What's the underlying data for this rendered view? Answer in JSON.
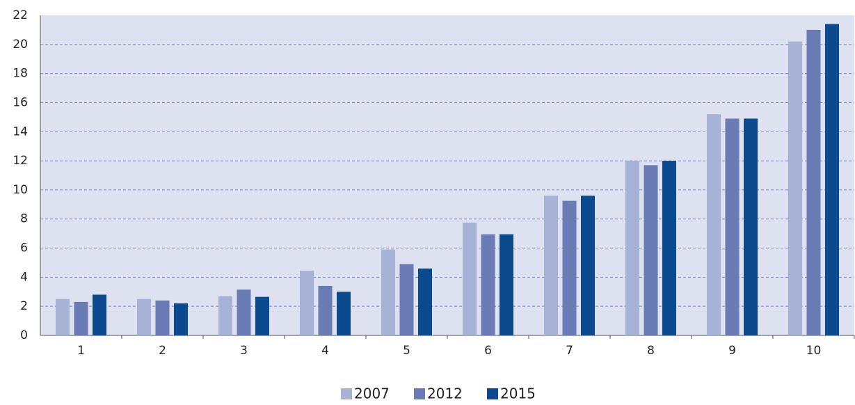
{
  "chart_data": {
    "type": "bar",
    "categories": [
      "1",
      "2",
      "3",
      "4",
      "5",
      "6",
      "7",
      "8",
      "9",
      "10"
    ],
    "series": [
      {
        "name": "2007",
        "color": "#a7b3d6",
        "values": [
          2.5,
          2.5,
          2.7,
          4.45,
          5.9,
          7.75,
          9.6,
          12.0,
          15.2,
          20.2
        ]
      },
      {
        "name": "2012",
        "color": "#6a7cb6",
        "values": [
          2.3,
          2.4,
          3.15,
          3.4,
          4.9,
          6.95,
          9.25,
          11.7,
          14.9,
          21.0
        ]
      },
      {
        "name": "2015",
        "color": "#0b4a8f",
        "values": [
          2.8,
          2.2,
          2.65,
          3.0,
          4.6,
          6.95,
          9.6,
          12.0,
          14.9,
          21.4
        ]
      }
    ],
    "ylim": [
      0,
      22
    ],
    "yticks": [
      0,
      2,
      4,
      6,
      8,
      10,
      12,
      14,
      16,
      18,
      20,
      22
    ],
    "grid": true,
    "legend": "bottom"
  }
}
